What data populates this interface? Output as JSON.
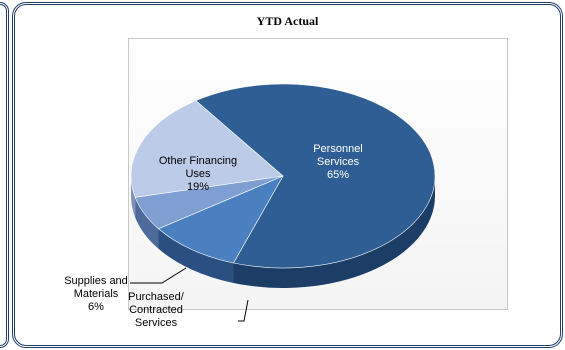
{
  "chart_data": {
    "type": "pie",
    "title": "YTD Actual",
    "slices": [
      {
        "label_lines": [
          "Personnel",
          "Services"
        ],
        "value": 65,
        "value_label": "65%",
        "color": "#2f5e95",
        "side": "#1c3d66"
      },
      {
        "label_lines": [
          "Purchased/",
          "Contracted",
          "Services"
        ],
        "value": 10,
        "value_label": "",
        "color": "#4a7fc0",
        "side": "#2b4f80"
      },
      {
        "label_lines": [
          "Supplies and",
          "Materials"
        ],
        "value": 6,
        "value_label": "6%",
        "color": "#7f9fd2",
        "side": "#4e6a9a"
      },
      {
        "label_lines": [
          "Other Financing",
          "Uses"
        ],
        "value": 19,
        "value_label": "19%",
        "color": "#bccbe8",
        "side": "#8092b5"
      }
    ]
  }
}
